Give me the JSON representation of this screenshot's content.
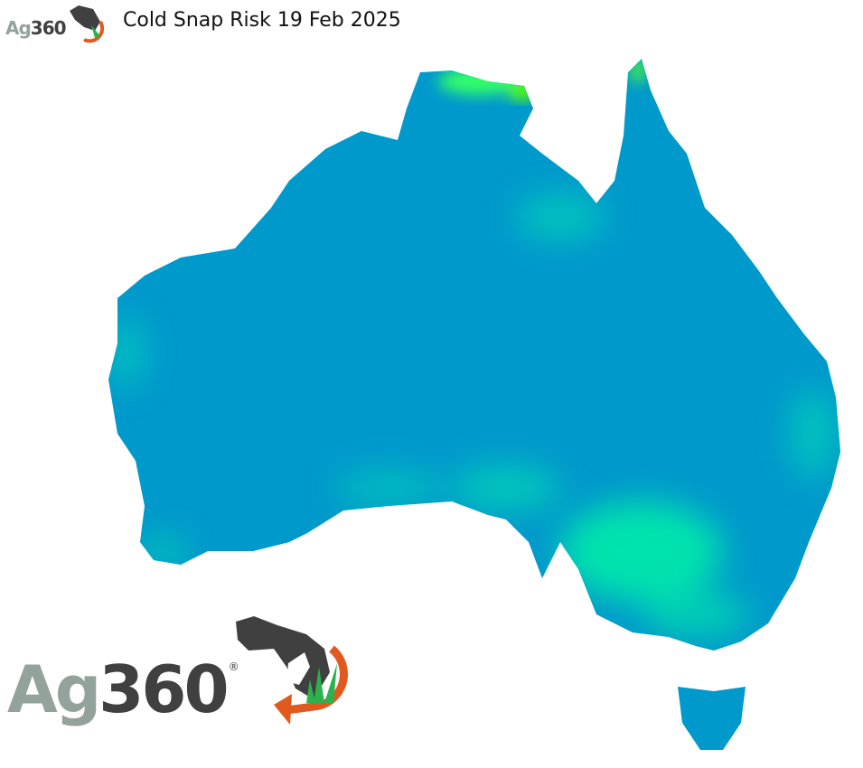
{
  "title": "Cold Snap Risk 19 Feb 2025",
  "logo": {
    "text_a": "Ag",
    "text_b": "360",
    "registered": "®"
  },
  "map": {
    "region": "Australia",
    "colors": {
      "low_risk": "#0099cc",
      "moderate_risk": "#00e8a8",
      "high_risk": "#55ff00"
    }
  }
}
